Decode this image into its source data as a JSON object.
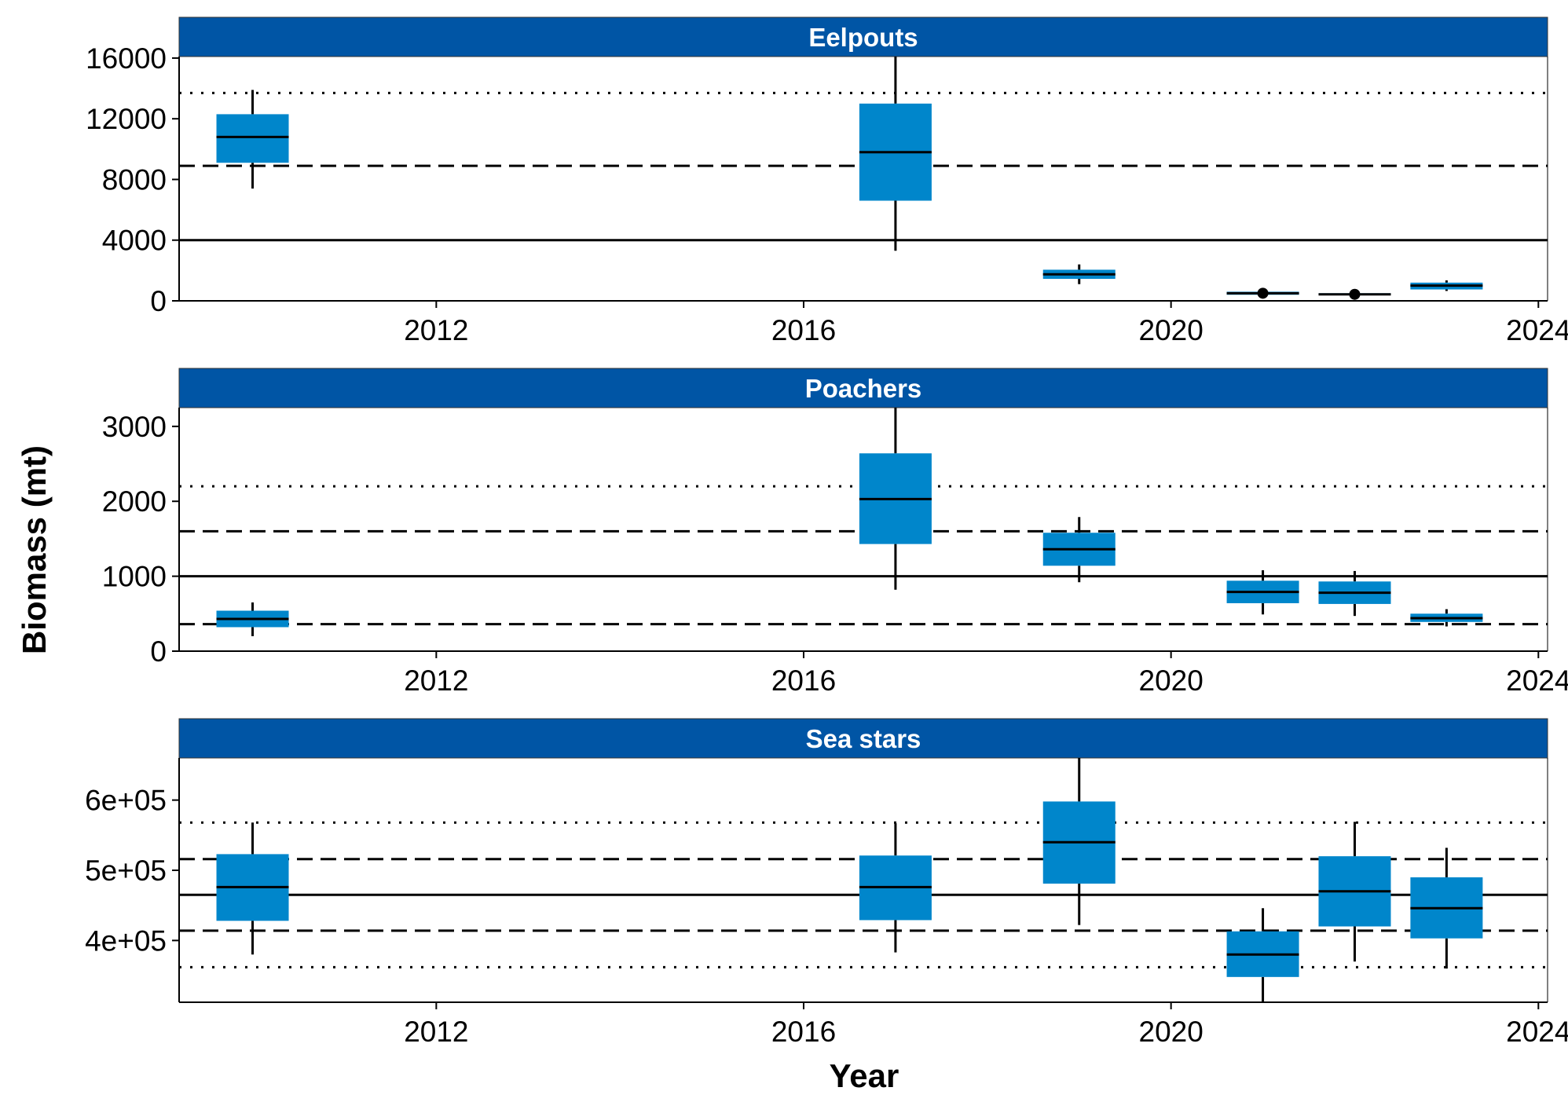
{
  "chart_data": {
    "type": "box",
    "xlabel": "Year",
    "ylabel": "Biomass (mt)",
    "xlim": [
      2009.2,
      2024.1
    ],
    "x_ticks": [
      2012,
      2016,
      2020,
      2024
    ],
    "x_tick_labels": [
      "2012",
      "2016",
      "2020",
      "2024"
    ],
    "box_color": "#0086CB",
    "strip_color": "#0055A5",
    "panels": [
      {
        "name": "Eelpouts",
        "ylim": [
          0,
          16100
        ],
        "y_ticks": [
          0,
          4000,
          8000,
          12000,
          16000
        ],
        "y_tick_labels": [
          "0",
          "4000",
          "8000",
          "12000",
          "16000"
        ],
        "reference_lines": {
          "solid": [
            4000
          ],
          "dashed": [
            8900
          ],
          "dotted": [
            13700
          ]
        },
        "boxes": [
          {
            "year": 2010,
            "low": 7400,
            "q1": 9100,
            "median": 10800,
            "q3": 12300,
            "high": 13900
          },
          {
            "year": 2017,
            "low": 3300,
            "q1": 6600,
            "median": 9800,
            "q3": 13000,
            "high": 16100
          },
          {
            "year": 2019,
            "low": 1100,
            "q1": 1450,
            "median": 1750,
            "q3": 2050,
            "high": 2400
          },
          {
            "year": 2021,
            "low": 350,
            "q1": 400,
            "median": 500,
            "q3": 600,
            "high": 650,
            "outliers": [
              500
            ]
          },
          {
            "year": 2022,
            "low": 300,
            "q1": 380,
            "median": 430,
            "q3": 500,
            "high": 550,
            "outliers": [
              430
            ]
          },
          {
            "year": 2023,
            "low": 650,
            "q1": 750,
            "median": 1000,
            "q3": 1200,
            "high": 1350
          }
        ]
      },
      {
        "name": "Poachers",
        "ylim": [
          0,
          3250
        ],
        "y_ticks": [
          0,
          1000,
          2000,
          3000
        ],
        "y_tick_labels": [
          "0",
          "1000",
          "2000",
          "3000"
        ],
        "reference_lines": {
          "solid": [
            1000
          ],
          "dashed": [
            1600,
            360
          ],
          "dotted": [
            2200
          ]
        },
        "boxes": [
          {
            "year": 2010,
            "low": 200,
            "q1": 320,
            "median": 430,
            "q3": 540,
            "high": 650
          },
          {
            "year": 2017,
            "low": 820,
            "q1": 1430,
            "median": 2030,
            "q3": 2640,
            "high": 3250
          },
          {
            "year": 2019,
            "low": 920,
            "q1": 1140,
            "median": 1360,
            "q3": 1580,
            "high": 1790
          },
          {
            "year": 2021,
            "low": 490,
            "q1": 640,
            "median": 790,
            "q3": 940,
            "high": 1080
          },
          {
            "year": 2022,
            "low": 470,
            "q1": 630,
            "median": 780,
            "q3": 930,
            "high": 1070
          },
          {
            "year": 2023,
            "low": 330,
            "q1": 390,
            "median": 440,
            "q3": 500,
            "high": 560
          }
        ]
      },
      {
        "name": "Sea stars",
        "ylim": [
          312000,
          660000
        ],
        "y_ticks": [
          400000,
          500000,
          600000
        ],
        "y_tick_labels": [
          "4e+05",
          "5e+05",
          "6e+05"
        ],
        "reference_lines": {
          "solid": [
            465000
          ],
          "dashed": [
            516000,
            414000
          ],
          "dotted": [
            568000,
            362000
          ]
        },
        "boxes": [
          {
            "year": 2010,
            "low": 380000,
            "q1": 428000,
            "median": 476000,
            "q3": 523000,
            "high": 568000
          },
          {
            "year": 2017,
            "low": 383000,
            "q1": 429000,
            "median": 476000,
            "q3": 521000,
            "high": 567000
          },
          {
            "year": 2019,
            "low": 422000,
            "q1": 481000,
            "median": 540000,
            "q3": 598000,
            "high": 660000
          },
          {
            "year": 2021,
            "low": 312000,
            "q1": 348000,
            "median": 380000,
            "q3": 413000,
            "high": 446000
          },
          {
            "year": 2022,
            "low": 370000,
            "q1": 420000,
            "median": 470000,
            "q3": 520000,
            "high": 569000
          },
          {
            "year": 2023,
            "low": 360000,
            "q1": 403000,
            "median": 446000,
            "q3": 490000,
            "high": 532000
          }
        ]
      }
    ]
  }
}
